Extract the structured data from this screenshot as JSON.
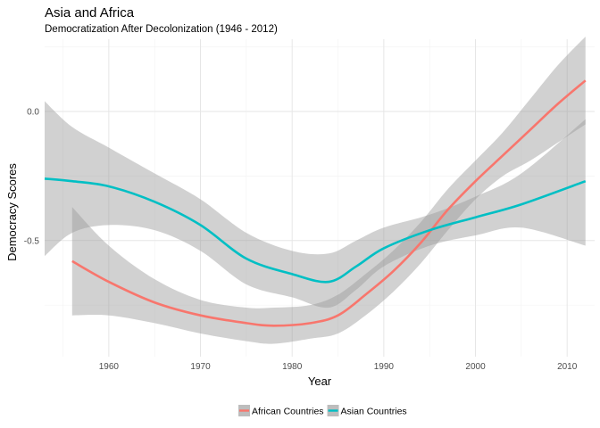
{
  "chart_data": {
    "type": "line",
    "title": "Asia and Africa",
    "subtitle": "Democratization After Decolonization (1946 - 2012)",
    "xlabel": "Year",
    "ylabel": "Democracy Scores",
    "xlim": [
      1953,
      2013
    ],
    "ylim": [
      -0.95,
      0.28
    ],
    "x_ticks": [
      1960,
      1970,
      1980,
      1990,
      2000,
      2010
    ],
    "y_ticks": [
      0.0,
      -0.5
    ],
    "y_tick_labels": [
      "0.0",
      "-0.5"
    ],
    "grid": true,
    "legend_position": "bottom",
    "series": [
      {
        "name": "African Countries",
        "color": "#F8766D",
        "points": [
          {
            "x": 1956,
            "y": -0.58,
            "lower": -0.79,
            "upper": -0.37
          },
          {
            "x": 1960,
            "y": -0.66,
            "lower": -0.79,
            "upper": -0.52
          },
          {
            "x": 1965,
            "y": -0.74,
            "lower": -0.82,
            "upper": -0.65
          },
          {
            "x": 1970,
            "y": -0.79,
            "lower": -0.86,
            "upper": -0.73
          },
          {
            "x": 1975,
            "y": -0.82,
            "lower": -0.89,
            "upper": -0.76
          },
          {
            "x": 1978,
            "y": -0.83,
            "lower": -0.9,
            "upper": -0.76
          },
          {
            "x": 1982,
            "y": -0.82,
            "lower": -0.88,
            "upper": -0.75
          },
          {
            "x": 1985,
            "y": -0.79,
            "lower": -0.86,
            "upper": -0.71
          },
          {
            "x": 1988,
            "y": -0.71,
            "lower": -0.79,
            "upper": -0.63
          },
          {
            "x": 1991,
            "y": -0.62,
            "lower": -0.7,
            "upper": -0.54
          },
          {
            "x": 1994,
            "y": -0.51,
            "lower": -0.59,
            "upper": -0.43
          },
          {
            "x": 1997,
            "y": -0.38,
            "lower": -0.46,
            "upper": -0.3
          },
          {
            "x": 2000,
            "y": -0.27,
            "lower": -0.34,
            "upper": -0.19
          },
          {
            "x": 2003,
            "y": -0.17,
            "lower": -0.25,
            "upper": -0.08
          },
          {
            "x": 2006,
            "y": -0.07,
            "lower": -0.19,
            "upper": 0.05
          },
          {
            "x": 2009,
            "y": 0.03,
            "lower": -0.12,
            "upper": 0.18
          },
          {
            "x": 2012,
            "y": 0.12,
            "lower": -0.05,
            "upper": 0.29
          }
        ]
      },
      {
        "name": "Asian Countries",
        "color": "#00BFC4",
        "points": [
          {
            "x": 1953,
            "y": -0.26,
            "lower": -0.56,
            "upper": 0.04
          },
          {
            "x": 1956,
            "y": -0.27,
            "lower": -0.47,
            "upper": -0.06
          },
          {
            "x": 1960,
            "y": -0.29,
            "lower": -0.44,
            "upper": -0.14
          },
          {
            "x": 1965,
            "y": -0.35,
            "lower": -0.46,
            "upper": -0.24
          },
          {
            "x": 1970,
            "y": -0.44,
            "lower": -0.54,
            "upper": -0.34
          },
          {
            "x": 1975,
            "y": -0.57,
            "lower": -0.67,
            "upper": -0.47
          },
          {
            "x": 1980,
            "y": -0.63,
            "lower": -0.72,
            "upper": -0.54
          },
          {
            "x": 1984,
            "y": -0.66,
            "lower": -0.76,
            "upper": -0.55
          },
          {
            "x": 1987,
            "y": -0.6,
            "lower": -0.69,
            "upper": -0.5
          },
          {
            "x": 1990,
            "y": -0.53,
            "lower": -0.6,
            "upper": -0.45
          },
          {
            "x": 1995,
            "y": -0.46,
            "lower": -0.52,
            "upper": -0.4
          },
          {
            "x": 2000,
            "y": -0.41,
            "lower": -0.48,
            "upper": -0.33
          },
          {
            "x": 2005,
            "y": -0.36,
            "lower": -0.45,
            "upper": -0.24
          },
          {
            "x": 2012,
            "y": -0.27,
            "lower": -0.52,
            "upper": -0.03
          }
        ]
      }
    ]
  }
}
